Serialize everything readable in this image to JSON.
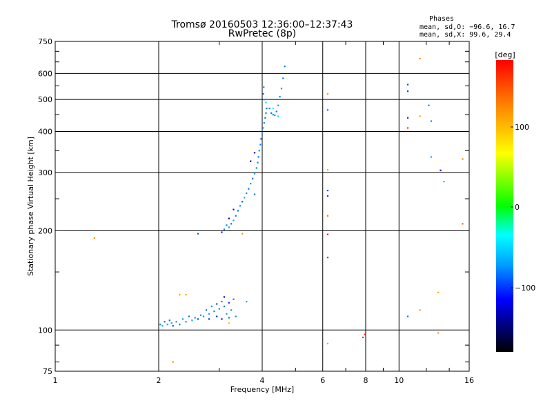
{
  "header": {
    "title_line1": "Tromsø 20160503 12:36:00–12:37:43",
    "title_line2": "RwPretec (8p)"
  },
  "stats": {
    "heading": "Phases",
    "line_o": "mean, sd,O: −96.6, 16.7",
    "line_x": "mean, sd,X:  99.6, 29.4"
  },
  "colorbar": {
    "label": "[deg]",
    "ticks": [
      "100",
      "0",
      "−100"
    ],
    "colors": {
      "max": "#ff0000",
      "p100": "#ffff00",
      "p50": "#00ff00",
      "zero": "#00ffff",
      "m100": "#0000ff",
      "min": "#000000"
    }
  },
  "chart_data": {
    "type": "scatter",
    "xlabel": "Frequency [MHz]",
    "ylabel": "Stationary phase Virtual Height [km]",
    "xscale": "log",
    "yscale": "log",
    "xlim": [
      1,
      16
    ],
    "ylim": [
      75,
      750
    ],
    "x_ticks": [
      1,
      2,
      4,
      6,
      8,
      10,
      16
    ],
    "y_ticks": [
      75,
      100,
      200,
      300,
      400,
      500,
      600,
      750
    ],
    "grid": true,
    "color_value": "phase_deg",
    "series": [
      {
        "points": [
          [
            2.02,
            104,
            -95
          ],
          [
            2.05,
            103,
            -80
          ],
          [
            2.08,
            106,
            -100
          ],
          [
            2.12,
            104,
            -90
          ],
          [
            2.15,
            107,
            -105
          ],
          [
            2.18,
            105,
            -85
          ],
          [
            2.2,
            103,
            -110
          ],
          [
            2.25,
            106,
            -92
          ],
          [
            2.3,
            104,
            -100
          ],
          [
            2.35,
            108,
            -88
          ],
          [
            2.4,
            106,
            -96
          ],
          [
            2.45,
            110,
            -102
          ],
          [
            2.5,
            107,
            -86
          ],
          [
            2.55,
            109,
            -94
          ],
          [
            2.6,
            108,
            -112
          ],
          [
            2.65,
            111,
            -90
          ],
          [
            2.7,
            110,
            -98
          ],
          [
            2.75,
            115,
            -104
          ],
          [
            2.8,
            112,
            -84
          ],
          [
            2.85,
            118,
            -96
          ],
          [
            2.9,
            114,
            -100
          ],
          [
            2.95,
            120,
            -108
          ],
          [
            3.0,
            116,
            -92
          ],
          [
            3.05,
            122,
            -97
          ],
          [
            3.1,
            118,
            -103
          ],
          [
            3.15,
            112,
            -89
          ],
          [
            3.2,
            109,
            -101
          ],
          [
            3.25,
            115,
            -94
          ],
          [
            3.3,
            124,
            -99
          ],
          [
            3.35,
            110,
            -95
          ],
          [
            2.95,
            110,
            -118
          ],
          [
            3.05,
            108,
            -125
          ],
          [
            3.1,
            126,
            -130
          ],
          [
            3.2,
            121,
            -120
          ],
          [
            2.8,
            108,
            -115
          ],
          [
            3.1,
            202,
            -95
          ],
          [
            3.15,
            208,
            -100
          ],
          [
            3.2,
            205,
            -90
          ],
          [
            3.25,
            210,
            -105
          ],
          [
            3.3,
            215,
            -85
          ],
          [
            3.35,
            222,
            -98
          ],
          [
            3.4,
            230,
            -102
          ],
          [
            3.45,
            238,
            -92
          ],
          [
            3.5,
            245,
            -110
          ],
          [
            3.55,
            252,
            -88
          ],
          [
            3.6,
            260,
            -96
          ],
          [
            3.65,
            268,
            -100
          ],
          [
            3.7,
            278,
            -94
          ],
          [
            3.75,
            288,
            -104
          ],
          [
            3.8,
            298,
            -90
          ],
          [
            3.85,
            310,
            -99
          ],
          [
            3.88,
            322,
            -95
          ],
          [
            3.9,
            335,
            -101
          ],
          [
            3.92,
            350,
            -93
          ],
          [
            3.95,
            365,
            -97
          ],
          [
            3.97,
            380,
            -103
          ],
          [
            4.0,
            395,
            -91
          ],
          [
            4.02,
            410,
            -99
          ],
          [
            4.05,
            425,
            -95
          ],
          [
            4.08,
            440,
            -100
          ],
          [
            4.1,
            455,
            -97
          ],
          [
            4.12,
            470,
            -102
          ],
          [
            4.05,
            500,
            -96
          ],
          [
            4.03,
            520,
            -99
          ],
          [
            4.04,
            545,
            -95
          ],
          [
            4.2,
            470,
            -98
          ],
          [
            4.25,
            455,
            -101
          ],
          [
            4.3,
            450,
            -94
          ],
          [
            4.35,
            448,
            -97
          ],
          [
            4.4,
            460,
            -103
          ],
          [
            4.45,
            480,
            -92
          ],
          [
            4.5,
            510,
            -99
          ],
          [
            4.55,
            540,
            -96
          ],
          [
            4.6,
            580,
            -100
          ],
          [
            4.65,
            630,
            -98
          ],
          [
            3.05,
            198,
            -125
          ],
          [
            3.2,
            218,
            -135
          ],
          [
            3.3,
            232,
            -130
          ],
          [
            3.7,
            325,
            -150
          ],
          [
            3.8,
            345,
            -140
          ],
          [
            4.1,
            490,
            -60
          ],
          [
            4.3,
            470,
            -40
          ],
          [
            4.45,
            445,
            -55
          ],
          [
            1.3,
            190,
            120
          ],
          [
            2.3,
            128,
            110
          ],
          [
            2.4,
            128,
            105
          ],
          [
            2.6,
            196,
            -110
          ],
          [
            3.5,
            196,
            115
          ],
          [
            3.6,
            122,
            -90
          ],
          [
            3.8,
            258,
            -100
          ],
          [
            2.2,
            80,
            115
          ],
          [
            3.2,
            105,
            95
          ],
          [
            6.2,
            520,
            115
          ],
          [
            6.2,
            465,
            -100
          ],
          [
            6.2,
            306,
            105
          ],
          [
            6.2,
            265,
            -110
          ],
          [
            6.2,
            255,
            -115
          ],
          [
            6.2,
            222,
            130
          ],
          [
            6.2,
            195,
            175
          ],
          [
            6.2,
            166,
            -105
          ],
          [
            6.2,
            91,
            110
          ],
          [
            7.85,
            95,
            160
          ],
          [
            7.95,
            97,
            165
          ],
          [
            10.6,
            555,
            -110
          ],
          [
            10.6,
            530,
            -115
          ],
          [
            10.6,
            440,
            -120
          ],
          [
            10.6,
            410,
            160
          ],
          [
            10.6,
            110,
            -100
          ],
          [
            11.5,
            665,
            120
          ],
          [
            11.5,
            445,
            110
          ],
          [
            11.5,
            115,
            110
          ],
          [
            12.2,
            480,
            -100
          ],
          [
            12.4,
            430,
            -95
          ],
          [
            12.4,
            335,
            -80
          ],
          [
            13.2,
            305,
            -130
          ],
          [
            13.5,
            282,
            -70
          ],
          [
            15.3,
            330,
            125
          ],
          [
            15.3,
            210,
            140
          ],
          [
            13.0,
            130,
            105
          ],
          [
            13.0,
            98,
            110
          ]
        ]
      }
    ]
  }
}
